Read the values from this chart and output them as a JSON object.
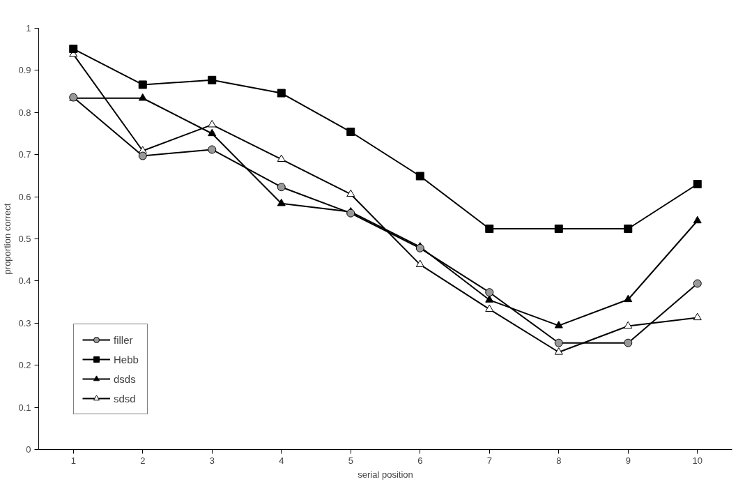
{
  "chart_data": {
    "type": "line",
    "xlabel": "serial position",
    "ylabel": "proportion correct",
    "categories": [
      "1",
      "2",
      "3",
      "4",
      "5",
      "6",
      "7",
      "8",
      "9",
      "10"
    ],
    "ylim": [
      0,
      1
    ],
    "yticks": [
      0,
      0.1,
      0.2,
      0.3,
      0.4,
      0.5,
      0.6,
      0.7,
      0.8,
      0.9,
      1
    ],
    "grid": false,
    "legend": "bottom left",
    "line_style": "solid",
    "series": [
      {
        "name": "filler",
        "color": "#999999",
        "marker": "circle",
        "values": [
          0.836,
          0.697,
          0.712,
          0.623,
          0.561,
          0.478,
          0.373,
          0.253,
          0.253,
          0.394
        ]
      },
      {
        "name": "Hebb",
        "color": "#000000",
        "marker": "square",
        "values": [
          0.951,
          0.866,
          0.877,
          0.846,
          0.754,
          0.649,
          0.524,
          0.524,
          0.524,
          0.63
        ]
      },
      {
        "name": "dsds",
        "color": "#000000",
        "marker": "triangle",
        "values": [
          0.834,
          0.834,
          0.75,
          0.584,
          0.564,
          0.481,
          0.355,
          0.294,
          0.356,
          0.543
        ]
      },
      {
        "name": "sdsd",
        "color": "#ffffff",
        "marker": "triangle",
        "values": [
          0.938,
          0.709,
          0.771,
          0.689,
          0.606,
          0.439,
          0.333,
          0.231,
          0.293,
          0.313
        ]
      }
    ]
  }
}
